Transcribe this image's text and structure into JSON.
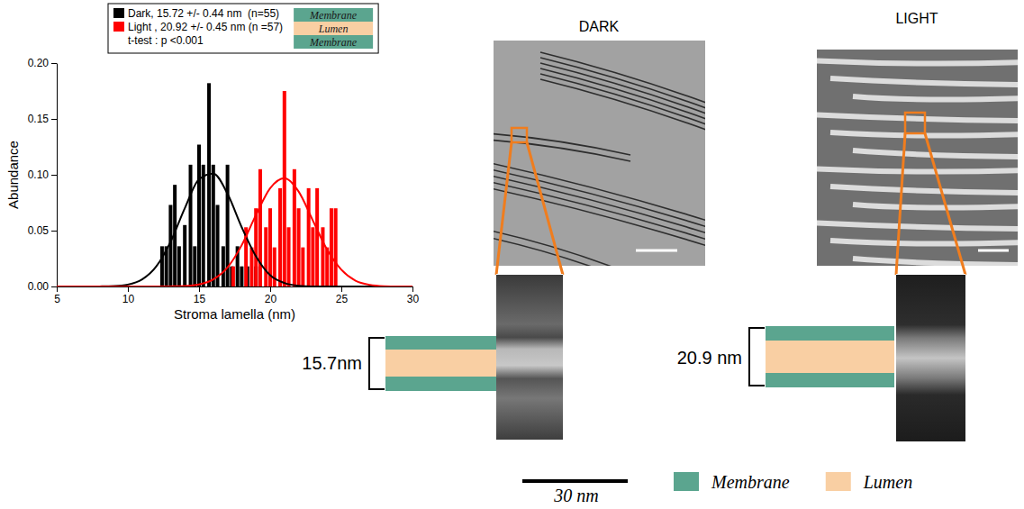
{
  "chart_data": {
    "type": "bar",
    "x_label": "Stroma lamella (nm)",
    "y_label": "Abundance",
    "xlim": [
      5,
      30
    ],
    "xticks": [
      5,
      10,
      15,
      20,
      25,
      30
    ],
    "ylim": [
      0,
      0.2
    ],
    "yticks": [
      {
        "value": 0,
        "label": "0.00"
      },
      {
        "value": 0.05,
        "label": "0.05"
      },
      {
        "value": 0.1,
        "label": "0.10"
      },
      {
        "value": 0.15,
        "label": "0.15"
      },
      {
        "value": 0.2,
        "label": "0.20"
      }
    ],
    "legend": "top",
    "annotation": "t-test : p <0.001",
    "legend_inset": [
      "Membrane",
      "Lumen",
      "Membrane"
    ],
    "series": [
      {
        "name": "Dark, 15.72 +/- 0.44 nm  (n=55)",
        "color": "#000000",
        "type": "bar",
        "x": [
          12.4,
          12.7,
          13.0,
          13.3,
          13.6,
          14.0,
          14.4,
          14.7,
          15.0,
          15.3,
          15.7,
          16.0,
          16.3,
          16.7,
          17.0,
          17.3,
          17.7,
          18.0,
          18.4,
          19.0
        ],
        "values": [
          0.036,
          0.036,
          0.073,
          0.091,
          0.036,
          0.055,
          0.109,
          0.036,
          0.127,
          0.109,
          0.182,
          0.109,
          0.073,
          0.036,
          0.109,
          0.018,
          0.036,
          0.018,
          0.018,
          0.018
        ]
      },
      {
        "name": "Light , 20.92 +/- 0.45 nm (n =57)",
        "color": "#ff0000",
        "type": "bar",
        "x": [
          17.4,
          18.3,
          18.7,
          19.0,
          19.3,
          19.7,
          20.0,
          20.3,
          20.7,
          21.0,
          21.3,
          21.7,
          22.0,
          22.3,
          22.7,
          23.0,
          23.3,
          23.7,
          24.0,
          24.3,
          24.6
        ],
        "values": [
          0.018,
          0.053,
          0.035,
          0.07,
          0.105,
          0.053,
          0.07,
          0.035,
          0.088,
          0.175,
          0.053,
          0.105,
          0.07,
          0.035,
          0.088,
          0.053,
          0.088,
          0.053,
          0.035,
          0.07,
          0.07
        ]
      },
      {
        "color": "#000000",
        "type": "line",
        "x": [
          5,
          6,
          7,
          8,
          9,
          10,
          11,
          12,
          13,
          14,
          15,
          16,
          17,
          18,
          19,
          20,
          21,
          22,
          23,
          24,
          25,
          26,
          27,
          28,
          29,
          30
        ],
        "values": [
          0,
          0,
          0,
          0.0001,
          0.0004,
          0.0017,
          0.0063,
          0.018,
          0.04,
          0.07,
          0.096,
          0.101,
          0.083,
          0.053,
          0.027,
          0.01,
          0.0031,
          0.0007,
          0.0001,
          0,
          0,
          0,
          0,
          0,
          0,
          0
        ]
      },
      {
        "color": "#ff0000",
        "type": "line",
        "x": [
          5,
          6,
          7,
          8,
          9,
          10,
          11,
          12,
          13,
          14,
          15,
          16,
          17,
          18,
          19,
          20,
          21,
          22,
          23,
          24,
          25,
          26,
          27,
          28,
          29,
          30
        ],
        "values": [
          0,
          0,
          0,
          0,
          0,
          0,
          0,
          0,
          0.0001,
          0.0004,
          0.0018,
          0.0063,
          0.017,
          0.037,
          0.064,
          0.088,
          0.097,
          0.085,
          0.059,
          0.033,
          0.015,
          0.0052,
          0.0015,
          0.0003,
          0,
          0
        ]
      }
    ]
  },
  "figure": {
    "panels": [
      {
        "title": "DARK",
        "bracket_label": "15.7nm"
      },
      {
        "title": "LIGHT",
        "bracket_label": "20.9 nm"
      }
    ],
    "scale_bar_label": "30 nm",
    "key": [
      {
        "label": "Membrane",
        "color": "#5ba58f"
      },
      {
        "label": "Lumen",
        "color": "#f9cfa3"
      }
    ]
  }
}
